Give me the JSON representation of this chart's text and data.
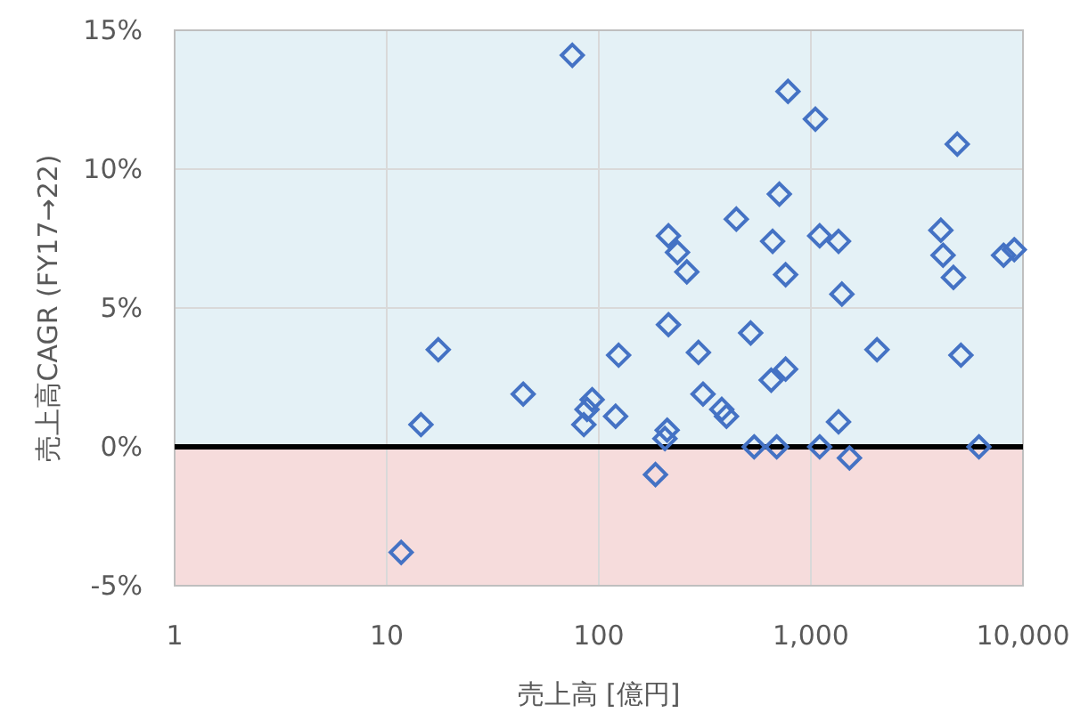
{
  "chart_data": {
    "type": "scatter",
    "xlabel": "売上高 [億円]",
    "ylabel": "売上高CAGR (FY17→22)",
    "log": "x",
    "grid": true,
    "marker": "diamond",
    "xlim": [
      1,
      10000
    ],
    "xticks": [
      1,
      10,
      100,
      {
        "value": 1000,
        "label": "1,000"
      },
      {
        "value": 10000,
        "label": "10,000"
      }
    ],
    "ylim": [
      -5,
      15
    ],
    "yticks": [
      {
        "value": -5,
        "label": "-5%"
      },
      {
        "value": 0,
        "label": "0%"
      },
      {
        "value": 5,
        "label": "5%"
      },
      {
        "value": 10,
        "label": "10%"
      },
      {
        "value": 15,
        "label": "15%"
      }
    ],
    "bands": [
      {
        "axis": "y",
        "from": 0,
        "to": 15,
        "color": "#e4f1f6"
      },
      {
        "axis": "y",
        "from": -5,
        "to": 0,
        "color": "#f6dcdc"
      }
    ],
    "ref_lines": [
      {
        "axis": "y",
        "value": 0,
        "color": "#000000"
      }
    ],
    "series": [
      {
        "color": "#4472c4",
        "x": [
          75,
          780,
          1050,
          4900,
          710,
          445,
          213,
          235,
          260,
          660,
          760,
          1100,
          1350,
          1400,
          4100,
          4200,
          4700,
          8100,
          9100,
          213,
          520,
          2050,
          5100,
          44,
          124,
          295,
          93,
          88,
          85,
          120,
          310,
          380,
          400,
          650,
          760,
          210,
          205,
          185,
          540,
          690,
          1100,
          1350,
          1520,
          6200,
          17.5,
          14.5,
          11.7
        ],
        "values": [
          14.1,
          12.8,
          11.8,
          10.9,
          9.1,
          8.2,
          7.6,
          7.0,
          6.3,
          7.4,
          6.2,
          7.6,
          7.4,
          5.5,
          7.8,
          6.9,
          6.1,
          6.9,
          7.1,
          4.4,
          4.1,
          3.5,
          3.3,
          1.9,
          3.3,
          3.4,
          1.7,
          1.35,
          0.8,
          1.1,
          1.9,
          1.35,
          1.1,
          2.4,
          2.8,
          0.6,
          0.3,
          -1.0,
          0,
          0,
          0,
          0.9,
          -0.4,
          0,
          3.5,
          0.8,
          -3.8
        ]
      }
    ]
  }
}
